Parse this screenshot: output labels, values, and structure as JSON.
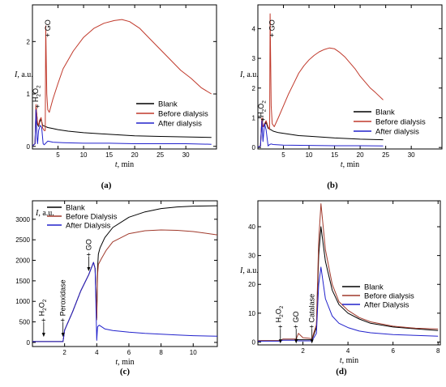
{
  "chart_data": [
    {
      "panel": "(a)",
      "type": "line",
      "xlabel": "t, min",
      "ylabel": "I, a.u.",
      "xlim": [
        0,
        36
      ],
      "ylim": [
        -0.05,
        2.7
      ],
      "xticks": [
        5,
        10,
        15,
        20,
        25,
        30
      ],
      "yticks": [
        0,
        1,
        2
      ],
      "legend_position": "right",
      "annotations": [
        {
          "text": "+ H2O2",
          "x": 1.0,
          "y": 1.25
        },
        {
          "text": "+ GO",
          "x": 3.0,
          "y": 2.9
        }
      ],
      "series": [
        {
          "name": "Blank",
          "color": "#000000",
          "x": [
            0,
            0.5,
            0.7,
            0.9,
            1.0,
            1.2,
            1.4,
            1.7,
            2.0,
            2.5,
            3,
            4,
            5,
            7,
            10,
            15,
            20,
            25,
            30,
            35
          ],
          "y": [
            0.01,
            0.05,
            0.75,
            0.55,
            0.42,
            0.38,
            0.46,
            0.52,
            0.4,
            0.38,
            0.36,
            0.34,
            0.32,
            0.29,
            0.26,
            0.23,
            0.2,
            0.19,
            0.18,
            0.17
          ]
        },
        {
          "name": "Before dialysis",
          "color": "#c0392b",
          "x": [
            0,
            0.5,
            0.7,
            0.9,
            1.0,
            1.2,
            1.4,
            1.7,
            2.0,
            2.3,
            2.5,
            2.6,
            2.8,
            3.0,
            3.3,
            4,
            5,
            6,
            8,
            10,
            12,
            14,
            16,
            17.5,
            19,
            21,
            23,
            25,
            27,
            29,
            31,
            33,
            35
          ],
          "y": [
            0.01,
            0.05,
            0.8,
            0.55,
            0.45,
            0.4,
            0.5,
            0.55,
            0.35,
            0.3,
            0.3,
            2.3,
            1.0,
            0.7,
            0.65,
            0.9,
            1.2,
            1.48,
            1.82,
            2.08,
            2.25,
            2.35,
            2.4,
            2.42,
            2.38,
            2.25,
            2.05,
            1.85,
            1.65,
            1.45,
            1.3,
            1.12,
            1.0
          ]
        },
        {
          "name": "After dialysis",
          "color": "#2222cc",
          "x": [
            0,
            0.5,
            0.7,
            0.9,
            1.0,
            1.2,
            1.5,
            1.8,
            2.1,
            2.3,
            2.5,
            3,
            4,
            6,
            10,
            15,
            20,
            25,
            30,
            35
          ],
          "y": [
            0.01,
            0.05,
            0.7,
            0.15,
            0.05,
            0.3,
            0.4,
            0.36,
            0.05,
            0.03,
            0.05,
            0.1,
            0.08,
            0.07,
            0.06,
            0.06,
            0.05,
            0.05,
            0.05,
            0.04
          ]
        }
      ]
    },
    {
      "panel": "(b)",
      "type": "line",
      "xlabel": "t, min",
      "ylabel": "I, a.u.",
      "xlim": [
        0,
        36
      ],
      "ylim": [
        -0.05,
        4.8
      ],
      "xticks": [
        5,
        10,
        15,
        20,
        25,
        30
      ],
      "yticks": [
        0,
        1,
        2,
        3,
        4
      ],
      "legend_position": "right",
      "annotations": [
        {
          "text": "+H2O2",
          "x": 1.0,
          "y": 1.8
        },
        {
          "text": "+ GO",
          "x": 2.8,
          "y": 5.0
        }
      ],
      "series": [
        {
          "name": "Blank",
          "color": "#000000",
          "x": [
            0,
            0.5,
            0.8,
            1.0,
            1.3,
            1.6,
            2.0,
            2.5,
            3,
            4,
            6,
            8,
            10,
            15,
            20,
            24.5
          ],
          "y": [
            0.01,
            0.05,
            1.0,
            0.7,
            0.75,
            0.85,
            0.65,
            0.6,
            0.55,
            0.5,
            0.45,
            0.4,
            0.38,
            0.32,
            0.28,
            0.26
          ]
        },
        {
          "name": "Before dialysis",
          "color": "#c0392b",
          "x": [
            0,
            0.5,
            0.8,
            1.0,
            1.3,
            1.6,
            2.0,
            2.3,
            2.4,
            2.6,
            2.8,
            3.2,
            4,
            5,
            6,
            7,
            8,
            9,
            10,
            11,
            12,
            13,
            14,
            15,
            16,
            17,
            18,
            19,
            20,
            21,
            22,
            23,
            24.5
          ],
          "y": [
            0.01,
            0.05,
            1.0,
            0.7,
            0.8,
            0.9,
            0.7,
            0.6,
            4.5,
            1.4,
            0.8,
            0.7,
            1.0,
            1.4,
            1.8,
            2.15,
            2.5,
            2.75,
            2.95,
            3.1,
            3.22,
            3.3,
            3.35,
            3.32,
            3.2,
            3.05,
            2.85,
            2.65,
            2.4,
            2.2,
            2.0,
            1.85,
            1.6
          ]
        },
        {
          "name": "After dialysis",
          "color": "#2222cc",
          "x": [
            0,
            0.5,
            0.8,
            1.0,
            1.3,
            1.6,
            2.0,
            2.3,
            2.6,
            3,
            5,
            10,
            15,
            20,
            24.5
          ],
          "y": [
            0.01,
            0.05,
            0.9,
            0.2,
            0.8,
            0.6,
            0.05,
            0.1,
            0.12,
            0.1,
            0.08,
            0.07,
            0.06,
            0.06,
            0.05
          ]
        }
      ]
    },
    {
      "panel": "(c)",
      "type": "line",
      "xlabel": "t, min",
      "ylabel": "I, a.u.",
      "xlim": [
        0,
        11.5
      ],
      "ylim": [
        -100,
        3450
      ],
      "xticks": [
        2,
        4,
        6,
        8,
        10
      ],
      "yticks": [
        0,
        500,
        1000,
        1500,
        2000,
        2500,
        3000
      ],
      "legend_position": "top-left",
      "annotations": [
        {
          "text": "+ H2O2",
          "x": 0.7,
          "y": 450
        },
        {
          "text": "+ Peroxidase",
          "x": 1.9,
          "y": 450
        },
        {
          "text": "+ GO",
          "x": 3.5,
          "y": 2050
        }
      ],
      "series": [
        {
          "name": "Blank",
          "color": "#000000",
          "x": [
            0,
            1.9,
            2.0,
            2.5,
            3.0,
            3.5,
            3.8,
            3.9,
            4.0,
            4.05,
            4.1,
            4.2,
            4.5,
            5,
            6,
            7,
            8,
            9,
            10,
            11.5
          ],
          "y": [
            20,
            20,
            300,
            750,
            1250,
            1650,
            1950,
            1800,
            600,
            1800,
            2150,
            2300,
            2550,
            2800,
            3050,
            3180,
            3260,
            3300,
            3320,
            3330
          ]
        },
        {
          "name": "Before Dialysis",
          "color": "#a0392b",
          "x": [
            0,
            1.9,
            2.0,
            2.5,
            3.0,
            3.5,
            3.8,
            3.9,
            4.0,
            4.05,
            4.1,
            4.3,
            4.6,
            5,
            6,
            7,
            8,
            9,
            10,
            11.5
          ],
          "y": [
            20,
            20,
            300,
            750,
            1250,
            1650,
            1950,
            1800,
            550,
            1650,
            1900,
            2050,
            2250,
            2450,
            2650,
            2720,
            2740,
            2730,
            2700,
            2620
          ]
        },
        {
          "name": "After Dialysis",
          "color": "#2222cc",
          "x": [
            0,
            1.9,
            2.0,
            2.5,
            3.0,
            3.5,
            3.8,
            3.9,
            4.0,
            4.05,
            4.15,
            4.5,
            5,
            6,
            7,
            8,
            9,
            10,
            11.5
          ],
          "y": [
            20,
            20,
            300,
            750,
            1250,
            1650,
            1950,
            1800,
            50,
            380,
            420,
            330,
            290,
            250,
            220,
            200,
            180,
            165,
            150
          ]
        }
      ]
    },
    {
      "panel": "(d)",
      "type": "line",
      "xlabel": "t, min",
      "ylabel": "I, a.u.",
      "xlim": [
        0,
        8.1
      ],
      "ylim": [
        -1,
        49
      ],
      "xticks": [
        2,
        4,
        6,
        8
      ],
      "yticks": [
        0,
        10,
        20,
        30,
        40
      ],
      "legend_position": "right",
      "annotations": [
        {
          "text": "+ H2O2",
          "x": 1.0,
          "y": 4
        },
        {
          "text": "+ GO",
          "x": 1.7,
          "y": 4
        },
        {
          "text": "+ Catalase",
          "x": 2.4,
          "y": 4
        }
      ],
      "series": [
        {
          "name": "Blank",
          "color": "#000000",
          "x": [
            0,
            1.0,
            1.1,
            1.7,
            1.8,
            2.4,
            2.6,
            2.7,
            2.8,
            3.0,
            3.3,
            3.6,
            4.0,
            4.5,
            5,
            6,
            7,
            8
          ],
          "y": [
            0.5,
            0.5,
            1.0,
            1.0,
            0.8,
            0.8,
            5,
            30,
            40,
            28,
            18,
            13,
            10,
            8.0,
            6.5,
            5.2,
            4.6,
            4.0
          ]
        },
        {
          "name": "Before dialysis",
          "color": "#a0392b",
          "x": [
            0,
            1.0,
            1.1,
            1.7,
            1.8,
            2.0,
            2.4,
            2.6,
            2.7,
            2.8,
            3.0,
            3.3,
            3.6,
            4.0,
            4.5,
            5,
            6,
            7,
            8
          ],
          "y": [
            0.5,
            0.5,
            1.0,
            1.0,
            3.0,
            1.5,
            1.2,
            6,
            35,
            48,
            32,
            20,
            14,
            11,
            8.5,
            7.0,
            5.5,
            4.8,
            4.5
          ]
        },
        {
          "name": "After Dialysis",
          "color": "#2222cc",
          "x": [
            0,
            1.0,
            1.1,
            1.7,
            1.8,
            2.4,
            2.6,
            2.7,
            2.8,
            3.0,
            3.3,
            3.6,
            4.0,
            4.5,
            5,
            6,
            7,
            8
          ],
          "y": [
            0.3,
            0.3,
            0.6,
            0.6,
            0.4,
            0.4,
            3,
            20,
            26,
            15,
            9,
            6.5,
            5,
            3.8,
            3.2,
            2.6,
            2.3,
            2.0
          ]
        }
      ]
    }
  ]
}
